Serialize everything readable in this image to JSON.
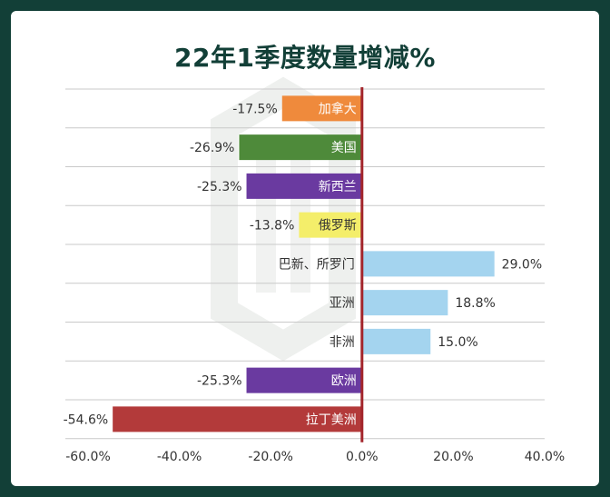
{
  "chart_data": {
    "type": "bar",
    "orientation": "horizontal",
    "title": "22年1季度数量增减%",
    "categories": [
      "加拿大",
      "美国",
      "新西兰",
      "俄罗斯",
      "巴新、所罗门",
      "亚洲",
      "非洲",
      "欧洲",
      "拉丁美洲"
    ],
    "values": [
      -17.5,
      -26.9,
      -25.3,
      -13.8,
      29.0,
      18.8,
      15.0,
      -25.3,
      -54.6
    ],
    "value_labels": [
      "-17.5%",
      "-26.9%",
      "-25.3%",
      "-13.8%",
      "29.0%",
      "18.8%",
      "15.0%",
      "-25.3%",
      "-54.6%"
    ],
    "bar_colors": [
      "#ef8a3c",
      "#4e8a3a",
      "#6a3aa0",
      "#f4ee6a",
      "#a4d4ef",
      "#a4d4ef",
      "#a4d4ef",
      "#6a3aa0",
      "#b33a3a"
    ],
    "category_text_colors": [
      "#ffffff",
      "#ffffff",
      "#ffffff",
      "#333333",
      "#333333",
      "#333333",
      "#333333",
      "#ffffff",
      "#ffffff"
    ],
    "xlim": [
      -60,
      40
    ],
    "xticks": [
      -60,
      -40,
      -20,
      0,
      20,
      40
    ],
    "xtick_labels": [
      "-60.0%",
      "-40.0%",
      "-20.0%",
      "0.0%",
      "20.0%",
      "40.0%"
    ],
    "grid": true,
    "zero_line_color": "#a3252b",
    "title_color": "#123f37",
    "background_color": "#123f37"
  }
}
